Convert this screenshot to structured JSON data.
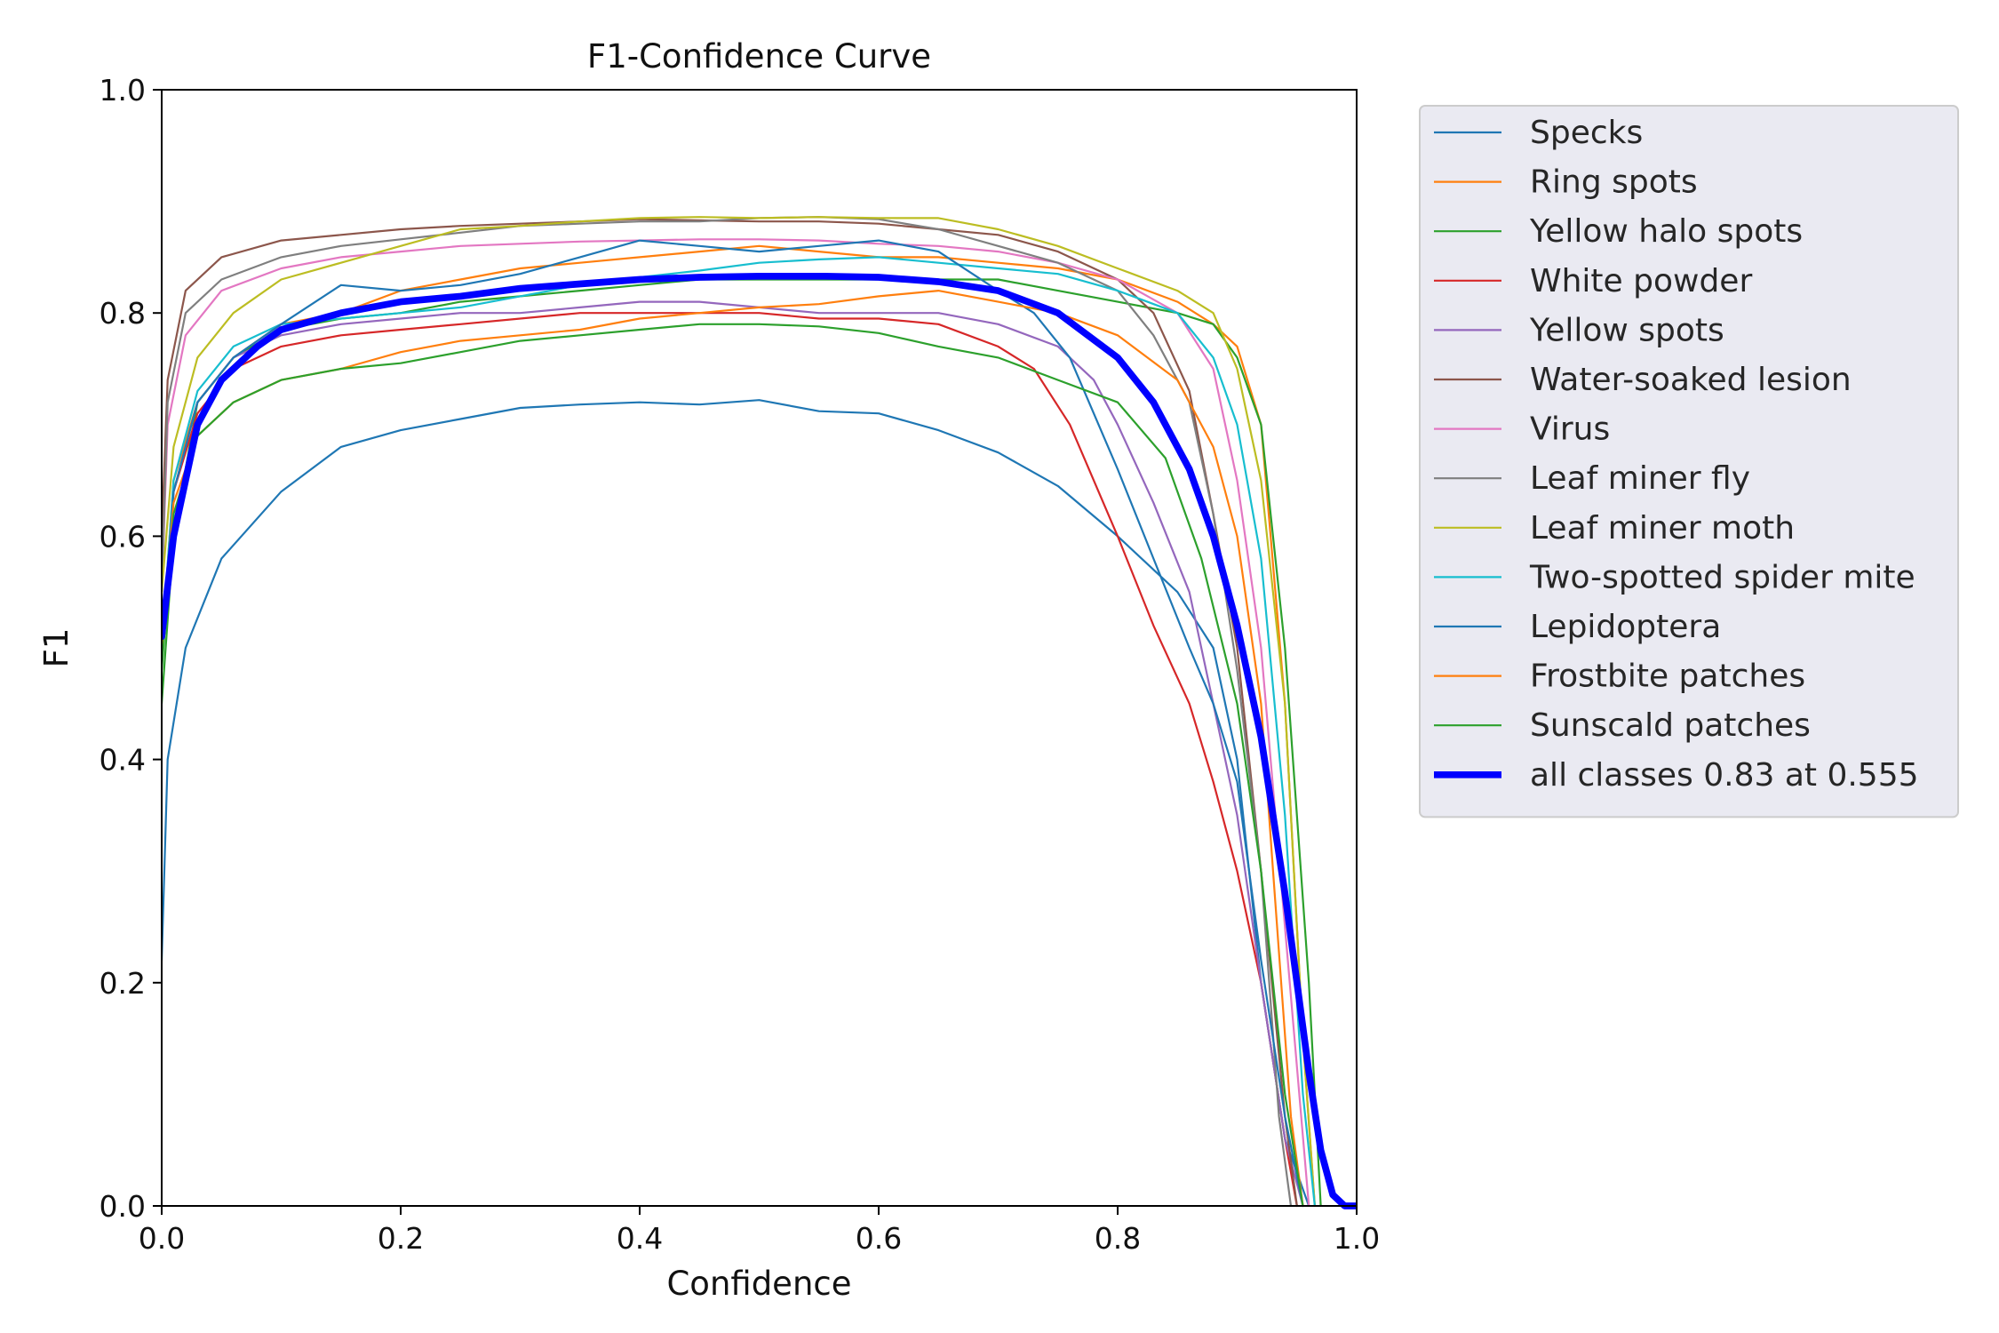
{
  "chart_data": {
    "type": "line",
    "title": "F1-Confidence Curve",
    "xlabel": "Confidence",
    "ylabel": "F1",
    "xlim": [
      0.0,
      1.0
    ],
    "ylim": [
      0.0,
      1.0
    ],
    "xticks": [
      "0.0",
      "0.2",
      "0.4",
      "0.6",
      "0.8",
      "1.0"
    ],
    "yticks": [
      "0.0",
      "0.2",
      "0.4",
      "0.6",
      "0.8",
      "1.0"
    ],
    "grid": false,
    "legend_position": "outside-right-top",
    "series": [
      {
        "name": "Specks",
        "color": "#1f77b4",
        "width": 2,
        "x": [
          0,
          0.005,
          0.02,
          0.05,
          0.1,
          0.15,
          0.2,
          0.25,
          0.3,
          0.35,
          0.4,
          0.45,
          0.5,
          0.55,
          0.6,
          0.65,
          0.7,
          0.75,
          0.8,
          0.85,
          0.88,
          0.9,
          0.92,
          0.94,
          0.96
        ],
        "y": [
          0.22,
          0.4,
          0.5,
          0.58,
          0.64,
          0.68,
          0.695,
          0.705,
          0.715,
          0.718,
          0.72,
          0.718,
          0.722,
          0.712,
          0.71,
          0.695,
          0.675,
          0.645,
          0.6,
          0.55,
          0.5,
          0.4,
          0.2,
          0.06,
          0.0
        ]
      },
      {
        "name": "Ring spots",
        "color": "#ff7f0e",
        "width": 2,
        "x": [
          0,
          0.01,
          0.03,
          0.06,
          0.1,
          0.15,
          0.2,
          0.25,
          0.3,
          0.35,
          0.4,
          0.45,
          0.5,
          0.55,
          0.6,
          0.65,
          0.7,
          0.75,
          0.8,
          0.85,
          0.88,
          0.9,
          0.92,
          0.94,
          0.955,
          0.965
        ],
        "y": [
          0.5,
          0.65,
          0.72,
          0.76,
          0.79,
          0.8,
          0.82,
          0.83,
          0.84,
          0.845,
          0.85,
          0.855,
          0.86,
          0.855,
          0.85,
          0.85,
          0.845,
          0.84,
          0.83,
          0.81,
          0.79,
          0.77,
          0.7,
          0.45,
          0.15,
          0.0
        ]
      },
      {
        "name": "Yellow halo spots",
        "color": "#2ca02c",
        "width": 2,
        "x": [
          0,
          0.01,
          0.03,
          0.06,
          0.1,
          0.15,
          0.2,
          0.25,
          0.3,
          0.35,
          0.4,
          0.45,
          0.5,
          0.55,
          0.6,
          0.65,
          0.7,
          0.75,
          0.8,
          0.85,
          0.88,
          0.9,
          0.92,
          0.94,
          0.96,
          0.97
        ],
        "y": [
          0.45,
          0.6,
          0.72,
          0.76,
          0.785,
          0.795,
          0.8,
          0.81,
          0.815,
          0.82,
          0.825,
          0.83,
          0.83,
          0.83,
          0.83,
          0.83,
          0.83,
          0.82,
          0.81,
          0.8,
          0.79,
          0.76,
          0.7,
          0.5,
          0.2,
          0.0
        ]
      },
      {
        "name": "White powder",
        "color": "#d62728",
        "width": 2,
        "x": [
          0,
          0.01,
          0.03,
          0.06,
          0.1,
          0.15,
          0.2,
          0.25,
          0.3,
          0.35,
          0.4,
          0.45,
          0.5,
          0.55,
          0.6,
          0.65,
          0.7,
          0.73,
          0.76,
          0.8,
          0.83,
          0.86,
          0.88,
          0.9,
          0.92,
          0.94,
          0.95
        ],
        "y": [
          0.5,
          0.64,
          0.71,
          0.75,
          0.77,
          0.78,
          0.785,
          0.79,
          0.795,
          0.8,
          0.8,
          0.8,
          0.8,
          0.795,
          0.795,
          0.79,
          0.77,
          0.75,
          0.7,
          0.6,
          0.52,
          0.45,
          0.38,
          0.3,
          0.2,
          0.06,
          0.0
        ]
      },
      {
        "name": "Yellow spots",
        "color": "#9467bd",
        "width": 2,
        "x": [
          0,
          0.01,
          0.03,
          0.06,
          0.1,
          0.15,
          0.2,
          0.25,
          0.3,
          0.35,
          0.4,
          0.45,
          0.5,
          0.55,
          0.6,
          0.65,
          0.7,
          0.75,
          0.78,
          0.8,
          0.83,
          0.86,
          0.88,
          0.9,
          0.92,
          0.94,
          0.955
        ],
        "y": [
          0.5,
          0.64,
          0.72,
          0.76,
          0.78,
          0.79,
          0.795,
          0.8,
          0.8,
          0.805,
          0.81,
          0.81,
          0.805,
          0.8,
          0.8,
          0.8,
          0.79,
          0.77,
          0.74,
          0.7,
          0.63,
          0.55,
          0.45,
          0.35,
          0.2,
          0.06,
          0.0
        ]
      },
      {
        "name": "Water-soaked lesion",
        "color": "#8c564b",
        "width": 2,
        "x": [
          0,
          0.005,
          0.02,
          0.05,
          0.1,
          0.15,
          0.2,
          0.25,
          0.3,
          0.35,
          0.4,
          0.45,
          0.5,
          0.55,
          0.6,
          0.65,
          0.7,
          0.75,
          0.8,
          0.83,
          0.86,
          0.88,
          0.9,
          0.92,
          0.94,
          0.95
        ],
        "y": [
          0.6,
          0.74,
          0.82,
          0.85,
          0.865,
          0.87,
          0.875,
          0.878,
          0.88,
          0.882,
          0.884,
          0.883,
          0.882,
          0.882,
          0.88,
          0.875,
          0.87,
          0.855,
          0.83,
          0.8,
          0.73,
          0.62,
          0.5,
          0.3,
          0.08,
          0.0
        ]
      },
      {
        "name": "Virus",
        "color": "#e377c2",
        "width": 2,
        "x": [
          0,
          0.005,
          0.02,
          0.05,
          0.1,
          0.15,
          0.2,
          0.25,
          0.3,
          0.35,
          0.4,
          0.45,
          0.5,
          0.55,
          0.6,
          0.65,
          0.7,
          0.75,
          0.8,
          0.85,
          0.88,
          0.9,
          0.92,
          0.94,
          0.96
        ],
        "y": [
          0.55,
          0.7,
          0.78,
          0.82,
          0.84,
          0.85,
          0.855,
          0.86,
          0.862,
          0.864,
          0.865,
          0.866,
          0.866,
          0.865,
          0.862,
          0.86,
          0.855,
          0.845,
          0.83,
          0.8,
          0.75,
          0.65,
          0.5,
          0.25,
          0.0
        ]
      },
      {
        "name": "Leaf miner fly",
        "color": "#7f7f7f",
        "width": 2,
        "x": [
          0,
          0.005,
          0.02,
          0.05,
          0.1,
          0.15,
          0.2,
          0.25,
          0.3,
          0.35,
          0.4,
          0.45,
          0.5,
          0.55,
          0.6,
          0.65,
          0.7,
          0.75,
          0.8,
          0.83,
          0.86,
          0.88,
          0.9,
          0.92,
          0.935,
          0.945
        ],
        "y": [
          0.55,
          0.72,
          0.8,
          0.83,
          0.85,
          0.86,
          0.866,
          0.872,
          0.878,
          0.88,
          0.882,
          0.882,
          0.885,
          0.886,
          0.884,
          0.875,
          0.86,
          0.845,
          0.82,
          0.78,
          0.72,
          0.62,
          0.48,
          0.3,
          0.08,
          0.0
        ]
      },
      {
        "name": "Leaf miner moth",
        "color": "#bcbd22",
        "width": 2,
        "x": [
          0,
          0.01,
          0.03,
          0.06,
          0.1,
          0.15,
          0.2,
          0.25,
          0.3,
          0.35,
          0.4,
          0.45,
          0.5,
          0.55,
          0.6,
          0.65,
          0.7,
          0.75,
          0.8,
          0.85,
          0.88,
          0.9,
          0.92,
          0.94,
          0.955,
          0.965
        ],
        "y": [
          0.55,
          0.68,
          0.76,
          0.8,
          0.83,
          0.845,
          0.86,
          0.875,
          0.878,
          0.882,
          0.885,
          0.886,
          0.885,
          0.886,
          0.885,
          0.885,
          0.875,
          0.86,
          0.84,
          0.82,
          0.8,
          0.75,
          0.65,
          0.45,
          0.15,
          0.0
        ]
      },
      {
        "name": "Two-spotted spider mite",
        "color": "#17becf",
        "width": 2,
        "x": [
          0,
          0.01,
          0.03,
          0.06,
          0.1,
          0.15,
          0.2,
          0.25,
          0.3,
          0.35,
          0.4,
          0.45,
          0.5,
          0.55,
          0.6,
          0.65,
          0.7,
          0.75,
          0.8,
          0.85,
          0.88,
          0.9,
          0.92,
          0.94,
          0.955,
          0.965
        ],
        "y": [
          0.5,
          0.65,
          0.73,
          0.77,
          0.79,
          0.795,
          0.8,
          0.805,
          0.815,
          0.825,
          0.832,
          0.838,
          0.845,
          0.848,
          0.85,
          0.845,
          0.84,
          0.835,
          0.82,
          0.8,
          0.76,
          0.7,
          0.58,
          0.35,
          0.1,
          0.0
        ]
      },
      {
        "name": "Lepidoptera",
        "color": "#1f77b4",
        "width": 2,
        "x": [
          0,
          0.01,
          0.03,
          0.06,
          0.1,
          0.15,
          0.2,
          0.25,
          0.3,
          0.35,
          0.4,
          0.45,
          0.5,
          0.55,
          0.6,
          0.65,
          0.7,
          0.73,
          0.76,
          0.8,
          0.83,
          0.86,
          0.88,
          0.9,
          0.92,
          0.94,
          0.955
        ],
        "y": [
          0.5,
          0.64,
          0.72,
          0.76,
          0.79,
          0.825,
          0.82,
          0.825,
          0.835,
          0.85,
          0.865,
          0.86,
          0.855,
          0.86,
          0.865,
          0.855,
          0.82,
          0.8,
          0.76,
          0.66,
          0.58,
          0.5,
          0.45,
          0.38,
          0.22,
          0.08,
          0.0
        ]
      },
      {
        "name": "Frostbite patches",
        "color": "#ff7f0e",
        "width": 2,
        "x": [
          0,
          0.01,
          0.03,
          0.06,
          0.1,
          0.15,
          0.2,
          0.25,
          0.3,
          0.35,
          0.4,
          0.45,
          0.5,
          0.55,
          0.6,
          0.65,
          0.7,
          0.75,
          0.8,
          0.85,
          0.88,
          0.9,
          0.92,
          0.93,
          0.945,
          0.955
        ],
        "y": [
          0.5,
          0.63,
          0.69,
          0.72,
          0.74,
          0.75,
          0.765,
          0.775,
          0.78,
          0.785,
          0.795,
          0.8,
          0.805,
          0.808,
          0.815,
          0.82,
          0.81,
          0.8,
          0.78,
          0.74,
          0.68,
          0.6,
          0.45,
          0.3,
          0.08,
          0.0
        ]
      },
      {
        "name": "Sunscald patches",
        "color": "#2ca02c",
        "width": 2,
        "x": [
          0,
          0.01,
          0.03,
          0.06,
          0.1,
          0.15,
          0.2,
          0.25,
          0.3,
          0.35,
          0.4,
          0.45,
          0.5,
          0.55,
          0.6,
          0.65,
          0.7,
          0.75,
          0.8,
          0.84,
          0.87,
          0.9,
          0.92,
          0.94,
          0.955
        ],
        "y": [
          0.48,
          0.62,
          0.69,
          0.72,
          0.74,
          0.75,
          0.755,
          0.765,
          0.775,
          0.78,
          0.785,
          0.79,
          0.79,
          0.788,
          0.782,
          0.77,
          0.76,
          0.74,
          0.72,
          0.67,
          0.58,
          0.45,
          0.3,
          0.1,
          0.0
        ]
      },
      {
        "name": "all classes 0.83 at 0.555",
        "color": "#0000ff",
        "width": 7,
        "x": [
          0,
          0.01,
          0.03,
          0.05,
          0.08,
          0.1,
          0.15,
          0.2,
          0.25,
          0.3,
          0.35,
          0.4,
          0.45,
          0.5,
          0.555,
          0.6,
          0.65,
          0.7,
          0.75,
          0.8,
          0.83,
          0.86,
          0.88,
          0.9,
          0.92,
          0.94,
          0.95,
          0.96,
          0.97,
          0.98,
          0.99,
          1.0
        ],
        "y": [
          0.51,
          0.6,
          0.7,
          0.74,
          0.77,
          0.785,
          0.8,
          0.81,
          0.815,
          0.822,
          0.826,
          0.83,
          0.832,
          0.833,
          0.833,
          0.832,
          0.828,
          0.82,
          0.8,
          0.76,
          0.72,
          0.66,
          0.6,
          0.52,
          0.42,
          0.28,
          0.2,
          0.12,
          0.05,
          0.01,
          0.0,
          0.0
        ]
      }
    ]
  }
}
